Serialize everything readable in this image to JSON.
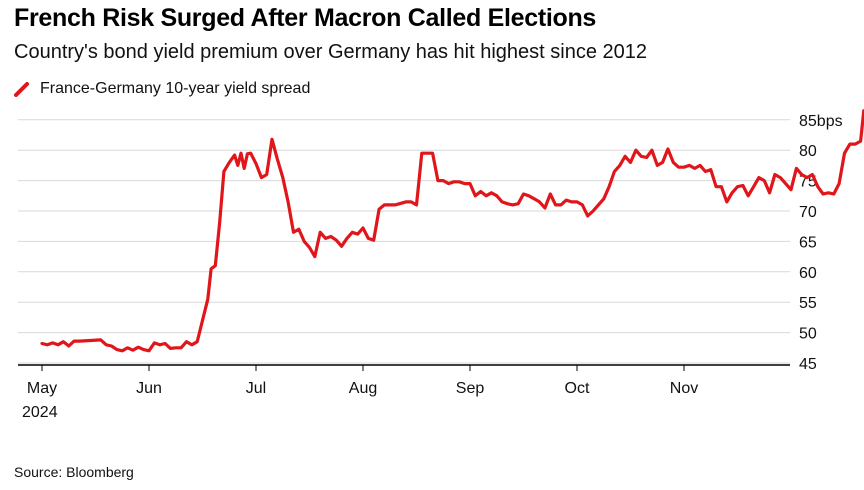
{
  "header": {
    "title": "French Risk Surged After Macron Called Elections",
    "subtitle": "Country's bond yield premium over Germany has hit highest since 2012"
  },
  "legend": {
    "label": "France-Germany 10-year yield spread"
  },
  "footer": {
    "source": "Source: Bloomberg"
  },
  "colors": {
    "series": "#e0161b",
    "grid": "#d9d9d9",
    "axis": "#000000"
  },
  "chart_data": {
    "type": "line",
    "title": "French Risk Surged After Macron Called Elections",
    "subtitle": "Country's bond yield premium over Germany has hit highest since 2012",
    "xlabel": "",
    "ylabel": "",
    "ylim": [
      45,
      88
    ],
    "yticks": [
      45,
      50,
      55,
      60,
      65,
      70,
      75,
      80
    ],
    "ytick_top_label": "85bps",
    "ytick_top_value": 85,
    "xlim": [
      0,
      7.75
    ],
    "xticks": [
      {
        "pos": 0,
        "label": "May",
        "sublabel": "2024"
      },
      {
        "pos": 1,
        "label": "Jun",
        "sublabel": ""
      },
      {
        "pos": 2,
        "label": "Jul",
        "sublabel": ""
      },
      {
        "pos": 3,
        "label": "Aug",
        "sublabel": ""
      },
      {
        "pos": 4,
        "label": "Sep",
        "sublabel": ""
      },
      {
        "pos": 5,
        "label": "Oct",
        "sublabel": ""
      },
      {
        "pos": 6,
        "label": "Nov",
        "sublabel": ""
      }
    ],
    "legend": "top-left",
    "grid": true,
    "series": [
      {
        "name": "France-Germany 10-year yield spread",
        "points": [
          [
            0.0,
            48.2
          ],
          [
            0.05,
            48.0
          ],
          [
            0.1,
            48.3
          ],
          [
            0.15,
            48.0
          ],
          [
            0.2,
            48.5
          ],
          [
            0.25,
            47.8
          ],
          [
            0.3,
            48.6
          ],
          [
            0.35,
            48.6
          ],
          [
            0.45,
            48.7
          ],
          [
            0.55,
            48.8
          ],
          [
            0.6,
            48.0
          ],
          [
            0.65,
            47.8
          ],
          [
            0.7,
            47.2
          ],
          [
            0.75,
            47.0
          ],
          [
            0.8,
            47.5
          ],
          [
            0.85,
            47.1
          ],
          [
            0.9,
            47.6
          ],
          [
            0.95,
            47.2
          ],
          [
            1.0,
            47.0
          ],
          [
            1.05,
            48.3
          ],
          [
            1.1,
            48.0
          ],
          [
            1.15,
            48.2
          ],
          [
            1.2,
            47.4
          ],
          [
            1.25,
            47.5
          ],
          [
            1.3,
            47.5
          ],
          [
            1.35,
            48.5
          ],
          [
            1.4,
            48.0
          ],
          [
            1.45,
            48.5
          ],
          [
            1.5,
            52.0
          ],
          [
            1.55,
            55.5
          ],
          [
            1.58,
            60.5
          ],
          [
            1.62,
            61.0
          ],
          [
            1.66,
            68.0
          ],
          [
            1.7,
            76.5
          ],
          [
            1.75,
            78.0
          ],
          [
            1.8,
            79.2
          ],
          [
            1.83,
            77.5
          ],
          [
            1.86,
            79.5
          ],
          [
            1.89,
            77.0
          ],
          [
            1.92,
            79.4
          ],
          [
            1.95,
            79.5
          ],
          [
            2.0,
            77.8
          ],
          [
            2.05,
            75.5
          ],
          [
            2.1,
            76.0
          ],
          [
            2.15,
            81.8
          ],
          [
            2.2,
            78.5
          ],
          [
            2.25,
            75.5
          ],
          [
            2.3,
            71.5
          ],
          [
            2.35,
            66.5
          ],
          [
            2.4,
            67.0
          ],
          [
            2.45,
            65.0
          ],
          [
            2.5,
            64.0
          ],
          [
            2.55,
            62.5
          ],
          [
            2.6,
            66.5
          ],
          [
            2.65,
            65.5
          ],
          [
            2.7,
            65.8
          ],
          [
            2.75,
            65.2
          ],
          [
            2.8,
            64.2
          ],
          [
            2.85,
            65.5
          ],
          [
            2.9,
            66.5
          ],
          [
            2.95,
            66.2
          ],
          [
            3.0,
            67.2
          ],
          [
            3.05,
            65.5
          ],
          [
            3.1,
            65.2
          ],
          [
            3.15,
            70.3
          ],
          [
            3.2,
            71.0
          ],
          [
            3.3,
            71.0
          ],
          [
            3.4,
            71.5
          ],
          [
            3.45,
            71.5
          ],
          [
            3.5,
            71.0
          ],
          [
            3.55,
            79.5
          ],
          [
            3.6,
            79.5
          ],
          [
            3.65,
            79.5
          ],
          [
            3.7,
            75.0
          ],
          [
            3.75,
            75.0
          ],
          [
            3.8,
            74.5
          ],
          [
            3.85,
            74.8
          ],
          [
            3.9,
            74.8
          ],
          [
            3.95,
            74.5
          ],
          [
            4.0,
            74.5
          ],
          [
            4.05,
            72.5
          ],
          [
            4.1,
            73.2
          ],
          [
            4.15,
            72.5
          ],
          [
            4.2,
            73.0
          ],
          [
            4.25,
            72.5
          ],
          [
            4.3,
            71.5
          ],
          [
            4.35,
            71.2
          ],
          [
            4.4,
            71.0
          ],
          [
            4.45,
            71.2
          ],
          [
            4.5,
            72.8
          ],
          [
            4.55,
            72.5
          ],
          [
            4.6,
            72.0
          ],
          [
            4.65,
            71.5
          ],
          [
            4.7,
            70.5
          ],
          [
            4.75,
            72.8
          ],
          [
            4.8,
            71.0
          ],
          [
            4.85,
            71.0
          ],
          [
            4.9,
            71.8
          ],
          [
            4.95,
            71.5
          ],
          [
            5.0,
            71.5
          ],
          [
            5.05,
            71.0
          ],
          [
            5.1,
            69.2
          ],
          [
            5.15,
            70.0
          ],
          [
            5.2,
            71.0
          ],
          [
            5.25,
            72.0
          ],
          [
            5.3,
            74.0
          ],
          [
            5.35,
            76.5
          ],
          [
            5.4,
            77.5
          ],
          [
            5.45,
            79.0
          ],
          [
            5.5,
            78.0
          ],
          [
            5.55,
            80.0
          ],
          [
            5.6,
            79.0
          ],
          [
            5.65,
            78.8
          ],
          [
            5.7,
            80.0
          ],
          [
            5.75,
            77.5
          ],
          [
            5.8,
            78.0
          ],
          [
            5.85,
            80.2
          ],
          [
            5.9,
            78.0
          ],
          [
            5.95,
            77.2
          ],
          [
            6.0,
            77.2
          ],
          [
            6.05,
            77.5
          ],
          [
            6.1,
            77.0
          ],
          [
            6.15,
            77.5
          ],
          [
            6.2,
            76.5
          ],
          [
            6.25,
            76.8
          ],
          [
            6.3,
            74.0
          ],
          [
            6.35,
            74.0
          ],
          [
            6.4,
            71.5
          ],
          [
            6.45,
            73.0
          ],
          [
            6.5,
            74.0
          ],
          [
            6.55,
            74.2
          ],
          [
            6.6,
            72.5
          ],
          [
            6.65,
            74.0
          ],
          [
            6.7,
            75.5
          ],
          [
            6.75,
            75.0
          ],
          [
            6.8,
            73.0
          ],
          [
            6.85,
            76.0
          ],
          [
            6.9,
            75.5
          ],
          [
            6.95,
            74.5
          ],
          [
            7.0,
            73.5
          ],
          [
            7.05,
            77.0
          ],
          [
            7.1,
            76.0
          ],
          [
            7.15,
            75.5
          ],
          [
            7.2,
            76.0
          ],
          [
            7.25,
            74.0
          ],
          [
            7.3,
            72.8
          ],
          [
            7.35,
            73.0
          ],
          [
            7.4,
            72.8
          ],
          [
            7.45,
            74.5
          ],
          [
            7.5,
            79.5
          ],
          [
            7.55,
            81.0
          ],
          [
            7.6,
            81.0
          ],
          [
            7.65,
            81.5
          ],
          [
            7.68,
            86.5
          ],
          [
            7.71,
            86.5
          ],
          [
            7.75,
            84.5
          ]
        ]
      }
    ]
  }
}
